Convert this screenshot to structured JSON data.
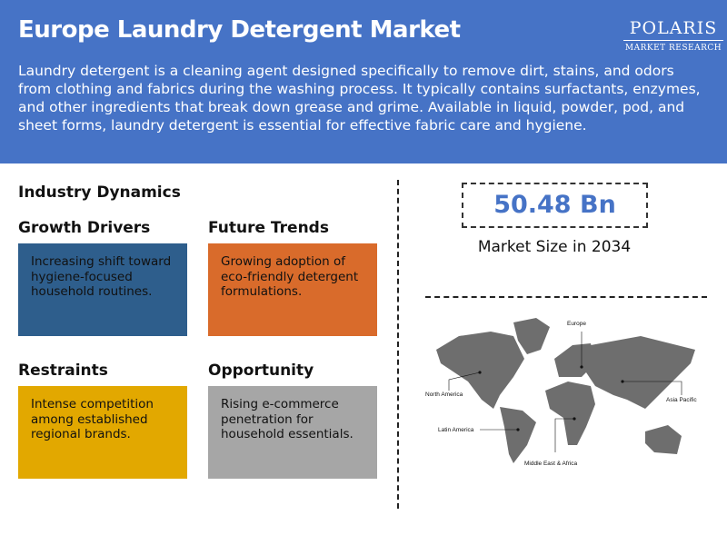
{
  "header": {
    "title": "Europe Laundry Detergent Market",
    "description": "Laundry detergent is a cleaning agent designed specifically to remove dirt, stains, and odors from clothing and fabrics during the washing process. It typically contains surfactants, enzymes, and other ingredients that break down grease and grime. Available in liquid, powder, pod, and sheet forms, laundry detergent is essential for effective fabric care and hygiene.",
    "logo": {
      "name": "POLARIS",
      "tagline": "MARKET RESEARCH"
    }
  },
  "dynamics": {
    "heading": "Industry Dynamics",
    "cards": [
      {
        "title": "Growth Drivers",
        "text": "Increasing shift toward hygiene-focused household routines.",
        "color": "#2e5e8c"
      },
      {
        "title": "Future Trends",
        "text": "Growing adoption of eco-friendly detergent formulations.",
        "color": "#d96b2b"
      },
      {
        "title": "Restraints",
        "text": "Intense competition among established regional brands.",
        "color": "#e2a800"
      },
      {
        "title": "Opportunity",
        "text": "Rising e-commerce penetration for household essentials.",
        "color": "#a6a6a6"
      }
    ]
  },
  "market": {
    "value": "50.48 Bn",
    "label": "Market Size in 2034"
  },
  "map": {
    "regions": [
      "North America",
      "Europe",
      "Asia Pacific",
      "Latin America",
      "Middle East & Africa"
    ]
  }
}
